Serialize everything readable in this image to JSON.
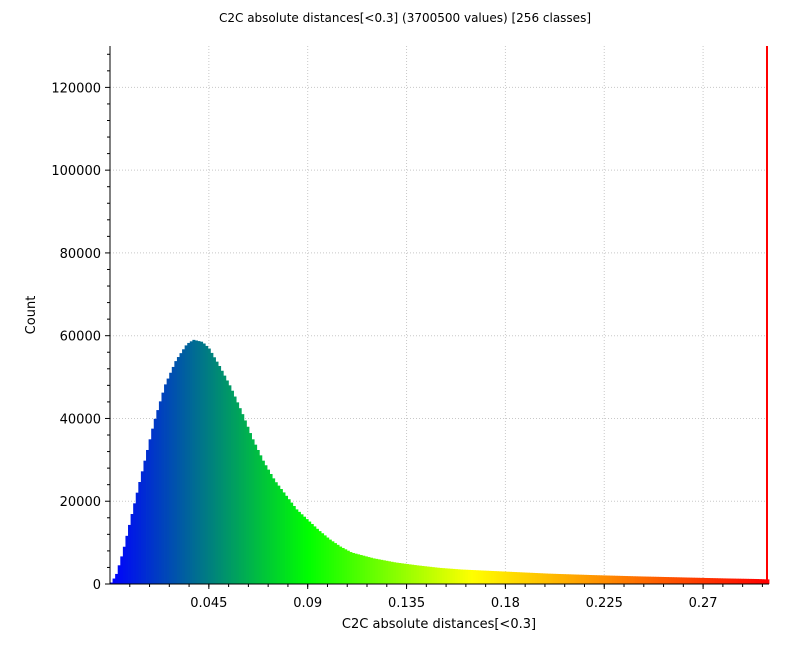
{
  "chart_data": {
    "type": "histogram",
    "title": "C2C absolute distances[<0.3] (3700500 values)  [256 classes]",
    "xlabel": "C2C absolute distances[<0.3]",
    "ylabel": "Count",
    "xlim": [
      0,
      0.3
    ],
    "ylim": [
      0,
      130000
    ],
    "bins": 256,
    "total_values": 3700500,
    "grid": true,
    "x_ticks": [
      "0.045",
      "0.09",
      "0.135",
      "0.18",
      "0.225",
      "0.27"
    ],
    "x_tick_values": [
      0.045,
      0.09,
      0.135,
      0.18,
      0.225,
      0.27
    ],
    "y_ticks": [
      "0",
      "20000",
      "40000",
      "60000",
      "80000",
      "100000",
      "120000"
    ],
    "y_tick_values": [
      0,
      20000,
      40000,
      60000,
      80000,
      100000,
      120000
    ],
    "distribution_keypoints": [
      [
        0.0,
        0
      ],
      [
        0.001,
        600
      ],
      [
        0.003,
        2500
      ],
      [
        0.006,
        8000
      ],
      [
        0.01,
        17000
      ],
      [
        0.015,
        28000
      ],
      [
        0.02,
        39000
      ],
      [
        0.025,
        48000
      ],
      [
        0.03,
        54000
      ],
      [
        0.035,
        58000
      ],
      [
        0.038,
        59000
      ],
      [
        0.042,
        58500
      ],
      [
        0.045,
        57000
      ],
      [
        0.05,
        52500
      ],
      [
        0.055,
        47500
      ],
      [
        0.06,
        41500
      ],
      [
        0.065,
        35000
      ],
      [
        0.07,
        29500
      ],
      [
        0.075,
        25000
      ],
      [
        0.08,
        21500
      ],
      [
        0.085,
        18000
      ],
      [
        0.09,
        15500
      ],
      [
        0.095,
        13000
      ],
      [
        0.1,
        10800
      ],
      [
        0.105,
        9000
      ],
      [
        0.11,
        7600
      ],
      [
        0.12,
        6200
      ],
      [
        0.13,
        5200
      ],
      [
        0.14,
        4500
      ],
      [
        0.15,
        3900
      ],
      [
        0.16,
        3500
      ],
      [
        0.18,
        3000
      ],
      [
        0.2,
        2500
      ],
      [
        0.22,
        2150
      ],
      [
        0.24,
        1850
      ],
      [
        0.26,
        1600
      ],
      [
        0.28,
        1350
      ],
      [
        0.295,
        1200
      ],
      [
        0.3,
        1100
      ]
    ],
    "threshold_line": {
      "x": 0.3,
      "color": "#ff0000"
    },
    "colorscale": [
      "#0000ff",
      "#00ff00",
      "#ffff00",
      "#ff0000"
    ]
  }
}
